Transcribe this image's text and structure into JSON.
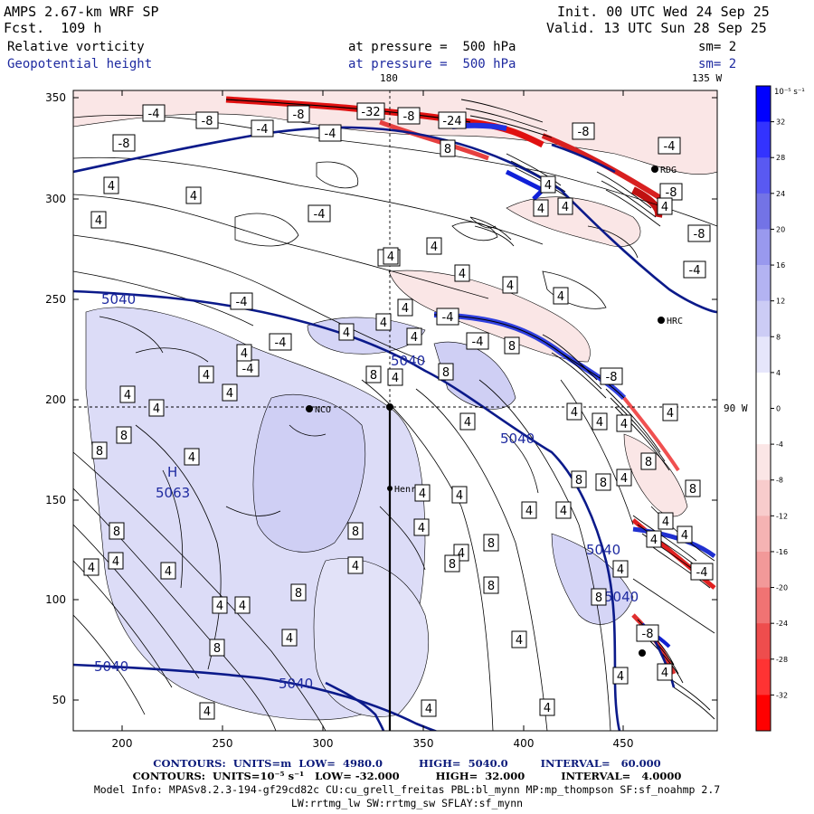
{
  "header": {
    "model": "AMPS 2.67-km WRF SP",
    "forecast_label": "Fcst.",
    "forecast_value": "109 h",
    "init_label": "Init.",
    "init_value": "00 UTC Wed 24 Sep 25",
    "valid_label": "Valid.",
    "valid_value": "13 UTC Sun 28 Sep 25",
    "field1_name": "Relative vorticity",
    "field1_level": "at pressure =",
    "field1_value": "500 hPa",
    "field1_smooth": "sm= 2",
    "field2_name": "Geopotential height",
    "field2_level": "at pressure =",
    "field2_value": "500 hPa",
    "field2_smooth": "sm= 2"
  },
  "map_labels": {
    "lon_180": "180",
    "lon_135w": "135 W",
    "lon_90w": "90 W",
    "station_nco": "NCO",
    "station_henry": "Henry",
    "station_rdg": "RDG",
    "station_hrc": "HRC",
    "high_marker": "H",
    "high_value": "5063"
  },
  "axes": {
    "x_ticks": [
      "200",
      "250",
      "300",
      "350",
      "400",
      "450"
    ],
    "y_ticks": [
      "50",
      "100",
      "150",
      "200",
      "250",
      "300",
      "350"
    ]
  },
  "height_contour_labels": [
    "5040",
    "5040",
    "5040",
    "5040",
    "5040",
    "5040",
    "5040"
  ],
  "vorticity_labels": [
    "-4",
    "-8",
    "-8",
    "-32",
    "-8",
    "-24",
    "-4",
    "-4",
    "-8",
    "4",
    "4",
    "4",
    "-4",
    "-4",
    "4",
    "4",
    "4",
    "4",
    "4",
    "-8",
    "-4",
    "-4",
    "-8",
    "8",
    "4",
    "4",
    "-4",
    "-4",
    "8",
    "4",
    "-4",
    "-4",
    "4",
    "4",
    "8",
    "8",
    "4",
    "4",
    "4",
    "8",
    "4",
    "8",
    "4",
    "-4",
    "4",
    "4",
    "4",
    "-8",
    "4",
    "4",
    "4",
    "4",
    "8",
    "8",
    "4",
    "8",
    "8",
    "4",
    "4",
    "8",
    "8",
    "4",
    "4",
    "4",
    "4",
    "8",
    "4",
    "8",
    "8",
    "4",
    "4",
    "4",
    "4",
    "8",
    "4",
    "4",
    "8",
    "4",
    "4",
    "4",
    "4",
    "4",
    "8",
    "4",
    "4",
    "4",
    "4",
    "-8",
    "4",
    "-4",
    "4",
    "4",
    "-8",
    "4",
    "4",
    "4",
    "4",
    "4",
    "4",
    "8",
    "-8"
  ],
  "colorbar": {
    "unit": "10⁻⁵ s⁻¹",
    "labels": [
      "32",
      "28",
      "24",
      "20",
      "16",
      "12",
      "8",
      "4",
      "0",
      "-4",
      "-8",
      "-12",
      "-16",
      "-20",
      "-24",
      "-28",
      "-32"
    ],
    "colors": [
      "#0000ff",
      "#3333ff",
      "#5959f2",
      "#7373e6",
      "#9999ee",
      "#b3b3f2",
      "#ccccf5",
      "#e6e6fb",
      "#ffffff",
      "#ffffff",
      "#fbe6e6",
      "#f8cccc",
      "#f5b3b3",
      "#f29999",
      "#f07373",
      "#ee4d4d",
      "#ff3333",
      "#ff0000"
    ]
  },
  "footer": {
    "line1": "CONTOURS:  UNITS=m  LOW=  4980.0          HIGH=  5040.0         INTERVAL=   60.000",
    "line2": "CONTOURS:  UNITS=10⁻⁵ s⁻¹   LOW= -32.000          HIGH=  32.000          INTERVAL=   4.0000",
    "line3": "Model Info: MPASv8.2.3-194-gf29cd82c CU:cu_grell_freitas PBL:bl_mynn MP:mp_thompson SF:sf_noahmp 2.7",
    "line4": "LW:rrtmg_lw SW:rrtmg_sw SFLAY:sf_mynn"
  }
}
